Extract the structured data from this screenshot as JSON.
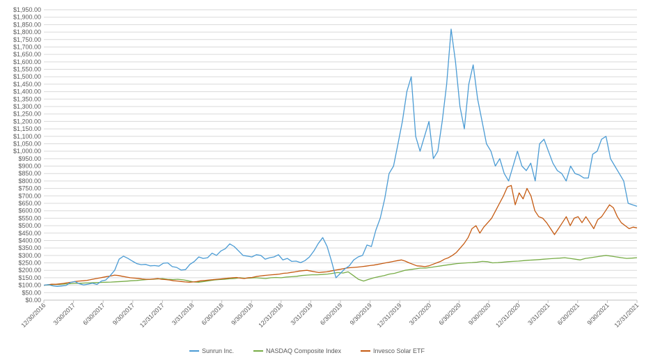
{
  "chart_data": {
    "type": "line",
    "title": "",
    "xlabel": "",
    "ylabel": "",
    "ylim": [
      0,
      1950
    ],
    "y_ticks": [
      0,
      50,
      100,
      150,
      200,
      250,
      300,
      350,
      400,
      450,
      500,
      550,
      600,
      650,
      700,
      750,
      800,
      850,
      900,
      950,
      1000,
      1050,
      1100,
      1150,
      1200,
      1250,
      1300,
      1350,
      1400,
      1450,
      1500,
      1550,
      1600,
      1650,
      1700,
      1750,
      1800,
      1850,
      1900,
      1950
    ],
    "y_tick_labels": [
      "$0.00",
      "$50.00",
      "$100.00",
      "$150.00",
      "$200.00",
      "$250.00",
      "$300.00",
      "$350.00",
      "$400.00",
      "$450.00",
      "$500.00",
      "$550.00",
      "$600.00",
      "$650.00",
      "$700.00",
      "$750.00",
      "$800.00",
      "$850.00",
      "$900.00",
      "$950.00",
      "$1,000.00",
      "$1,050.00",
      "$1,100.00",
      "$1,150.00",
      "$1,200.00",
      "$1,250.00",
      "$1,300.00",
      "$1,350.00",
      "$1,400.00",
      "$1,450.00",
      "$1,500.00",
      "$1,550.00",
      "$1,600.00",
      "$1,650.00",
      "$1,700.00",
      "$1,750.00",
      "$1,800.00",
      "$1,850.00",
      "$1,900.00",
      "$1,950.00"
    ],
    "x_tick_labels": [
      "12/30/2016",
      "3/30/2017",
      "6/30/2017",
      "9/30/2017",
      "12/31/2017",
      "3/31/2018",
      "6/30/2018",
      "9/30/2018",
      "12/31/2018",
      "3/31/2019",
      "6/30/2019",
      "9/30/2019",
      "12/31/2019",
      "3/31/2020",
      "6/30/2020",
      "9/30/2020",
      "12/31/2020",
      "3/31/2021",
      "6/30/2021",
      "9/30/2021",
      "12/31/2021"
    ],
    "grid": true,
    "legend_position": "bottom",
    "series": [
      {
        "name": "Sunrun Inc.",
        "color": "#4a9bd4",
        "values": [
          100,
          104,
          96,
          92,
          95,
          98,
          118,
          125,
          110,
          102,
          107,
          113,
          105,
          128,
          135,
          165,
          200,
          275,
          295,
          280,
          262,
          245,
          238,
          240,
          230,
          232,
          228,
          248,
          250,
          225,
          220,
          202,
          205,
          240,
          260,
          290,
          280,
          285,
          315,
          300,
          330,
          345,
          378,
          360,
          330,
          300,
          295,
          290,
          305,
          300,
          275,
          285,
          290,
          305,
          270,
          280,
          260,
          262,
          252,
          265,
          290,
          330,
          380,
          420,
          360,
          260,
          150,
          180,
          210,
          230,
          270,
          290,
          300,
          370,
          360,
          470,
          550,
          680,
          850,
          900,
          1050,
          1200,
          1400,
          1500,
          1100,
          1000,
          1100,
          1200,
          950,
          1000,
          1200,
          1450,
          1820,
          1600,
          1300,
          1150,
          1450,
          1580,
          1350,
          1200,
          1050,
          1000,
          900,
          950,
          850,
          800,
          900,
          1000,
          900,
          870,
          920,
          800,
          1050,
          1080,
          1000,
          920,
          870,
          850,
          800,
          900,
          850,
          840,
          820,
          820,
          980,
          1000,
          1080,
          1100,
          950,
          900,
          850,
          800,
          650,
          640,
          630
        ]
      },
      {
        "name": "NASDAQ Composite Index",
        "color": "#77ac46",
        "values": [
          100,
          102,
          105,
          106,
          108,
          110,
          112,
          113,
          115,
          116,
          118,
          119,
          120,
          121,
          123,
          125,
          127,
          130,
          132,
          135,
          138,
          140,
          142,
          144,
          140,
          138,
          140,
          136,
          130,
          122,
          120,
          125,
          130,
          135,
          138,
          140,
          143,
          145,
          150,
          147,
          148,
          150,
          148,
          145,
          150,
          152,
          150,
          155,
          157,
          160,
          165,
          168,
          170,
          170,
          172,
          175,
          180,
          185,
          182,
          190,
          165,
          140,
          128,
          140,
          150,
          158,
          165,
          175,
          180,
          190,
          200,
          205,
          210,
          215,
          215,
          220,
          225,
          230,
          235,
          240,
          245,
          248,
          250,
          252,
          255,
          260,
          258,
          250,
          252,
          255,
          258,
          260,
          262,
          265,
          268,
          270,
          272,
          275,
          278,
          280,
          282,
          285,
          280,
          275,
          270,
          280,
          285,
          290,
          295,
          300,
          295,
          290,
          285,
          280,
          282,
          285
        ]
      },
      {
        "name": "Invesco Solar ETF",
        "color": "#c55a11",
        "values": [
          100,
          103,
          107,
          106,
          109,
          112,
          117,
          120,
          125,
          128,
          130,
          133,
          138,
          143,
          148,
          153,
          158,
          162,
          168,
          165,
          160,
          155,
          150,
          148,
          146,
          142,
          140,
          140,
          142,
          145,
          140,
          138,
          135,
          130,
          128,
          125,
          122,
          120,
          122,
          125,
          130,
          132,
          135,
          137,
          140,
          142,
          145,
          148,
          150,
          152,
          148,
          145,
          150,
          152,
          158,
          162,
          165,
          168,
          170,
          172,
          175,
          180,
          182,
          186,
          190,
          195,
          198,
          200,
          195,
          190,
          185,
          188,
          190,
          195,
          200,
          205,
          210,
          215,
          218,
          220,
          222,
          225,
          228,
          232,
          235,
          240,
          245,
          250,
          255,
          260,
          265,
          270,
          262,
          250,
          240,
          230,
          228,
          225,
          230,
          240,
          250,
          260,
          275,
          285,
          300,
          320,
          350,
          380,
          420,
          480,
          500,
          450,
          490,
          520,
          550,
          600,
          650,
          700,
          760,
          770,
          640,
          720,
          680,
          750,
          700,
          600,
          560,
          550,
          520,
          480,
          440,
          480,
          520,
          560,
          500,
          550,
          560,
          520,
          560,
          520,
          480,
          540,
          560,
          600,
          640,
          620,
          560,
          520,
          500,
          480,
          490,
          485
        ]
      }
    ]
  }
}
